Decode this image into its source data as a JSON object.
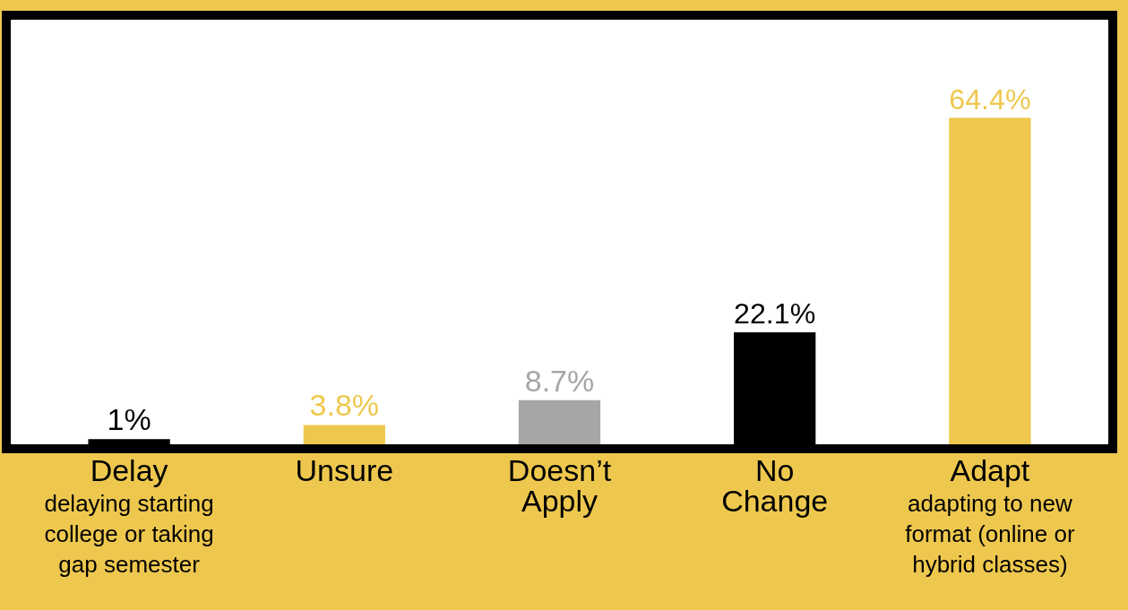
{
  "chart_data": {
    "type": "bar",
    "relative": false,
    "categories": [
      "Delay\ndelaying starting\ncollege or taking\ngap semester",
      "Unsure",
      "Doesn’t\nApply",
      "No\nChange",
      "Adapt\nadapting to new\nformat (online or\nhybrid classes)"
    ],
    "values": [
      1,
      3.8,
      8.7,
      22.1,
      64.4
    ],
    "colors": [
      "#000000",
      "#eec84e",
      "#a6a6a6",
      "#000000",
      "#eec84e"
    ],
    "value_labels": [
      "1%",
      "3.8%",
      "8.7%",
      "22.1%",
      "64.4%"
    ]
  }
}
